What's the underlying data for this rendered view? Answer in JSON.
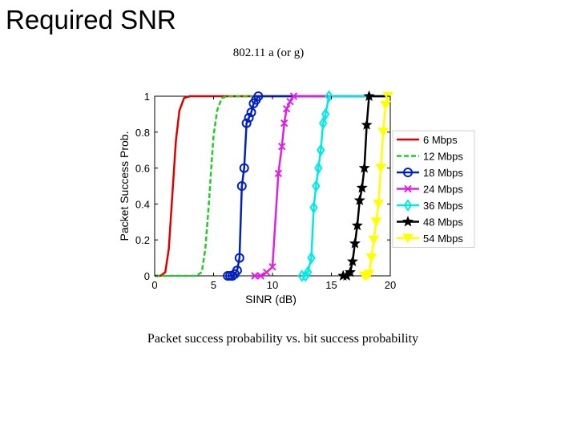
{
  "slide": {
    "title": "Required SNR",
    "subtitle": "802.11 a (or g)",
    "caption": "Packet success probability vs. bit success probability"
  },
  "chart_data": {
    "type": "line",
    "title": "",
    "xlabel": "SINR (dB)",
    "ylabel": "Packet Success Prob.",
    "xlim": [
      0,
      20
    ],
    "ylim": [
      0,
      1
    ],
    "xticks": [
      0,
      5,
      10,
      15,
      20
    ],
    "yticks": [
      0,
      0.2,
      0.4,
      0.6,
      0.8,
      1
    ],
    "xtick_labels": [
      "0",
      "5",
      "10",
      "15",
      "20"
    ],
    "ytick_labels": [
      "0",
      "0.2",
      "0.4",
      "0.6",
      "0.8",
      "1"
    ],
    "grid": false,
    "legend_position": "right",
    "series": [
      {
        "name": "6 Mbps",
        "color": "#e00000",
        "dashed": false,
        "marker": "none",
        "x": [
          0,
          0.5,
          0.9,
          1.2,
          1.4,
          1.6,
          1.8,
          2.1,
          2.5,
          3.0,
          20
        ],
        "y": [
          0,
          0,
          0.02,
          0.15,
          0.35,
          0.55,
          0.75,
          0.92,
          0.99,
          1,
          1
        ]
      },
      {
        "name": "12 Mbps",
        "color": "#22cc22",
        "dashed": true,
        "marker": "none",
        "x": [
          0,
          3.5,
          4.0,
          4.3,
          4.6,
          4.8,
          5.0,
          5.3,
          5.7,
          6.2,
          20
        ],
        "y": [
          0,
          0,
          0.02,
          0.15,
          0.4,
          0.6,
          0.78,
          0.92,
          0.99,
          1,
          1
        ]
      },
      {
        "name": "18 Mbps",
        "color": "#0020c0",
        "dashed": false,
        "marker": "circle",
        "x": [
          6.2,
          6.4,
          6.6,
          6.8,
          7.0,
          7.2,
          7.4,
          7.6,
          7.8,
          8.0,
          8.2,
          8.4,
          8.6,
          8.8,
          20
        ],
        "y": [
          0,
          0,
          0,
          0.01,
          0.03,
          0.1,
          0.5,
          0.6,
          0.85,
          0.88,
          0.91,
          0.96,
          0.98,
          1,
          1
        ]
      },
      {
        "name": "24 Mbps",
        "color": "#e020e0",
        "dashed": false,
        "marker": "x",
        "x": [
          8.5,
          9.0,
          9.5,
          10.0,
          10.5,
          10.8,
          11.0,
          11.2,
          11.5,
          11.8,
          20
        ],
        "y": [
          0,
          0,
          0.02,
          0.05,
          0.57,
          0.72,
          0.85,
          0.93,
          0.97,
          1,
          1
        ]
      },
      {
        "name": "36 Mbps",
        "color": "#00e8e8",
        "dashed": false,
        "marker": "diamond",
        "x": [
          12.5,
          12.8,
          13.0,
          13.3,
          13.5,
          13.7,
          13.9,
          14.1,
          14.3,
          14.5,
          14.8,
          20
        ],
        "y": [
          0,
          0,
          0.02,
          0.1,
          0.38,
          0.5,
          0.6,
          0.7,
          0.85,
          0.9,
          1,
          1
        ]
      },
      {
        "name": "48 Mbps",
        "color": "#000000",
        "dashed": false,
        "marker": "star",
        "x": [
          16.0,
          16.3,
          16.6,
          16.8,
          17.0,
          17.2,
          17.4,
          17.6,
          17.8,
          18.0,
          18.2,
          20
        ],
        "y": [
          0,
          0,
          0.02,
          0.08,
          0.18,
          0.28,
          0.42,
          0.49,
          0.6,
          0.84,
          1,
          1
        ]
      },
      {
        "name": "54 Mbps",
        "color": "#ffff00",
        "dashed": false,
        "marker": "triangle-down",
        "x": [
          17.8,
          18.0,
          18.2,
          18.4,
          18.6,
          18.8,
          19.0,
          19.2,
          19.4,
          19.6,
          19.8,
          20
        ],
        "y": [
          0,
          0,
          0.01,
          0.1,
          0.2,
          0.3,
          0.4,
          0.6,
          0.8,
          0.95,
          1,
          1
        ]
      }
    ]
  }
}
